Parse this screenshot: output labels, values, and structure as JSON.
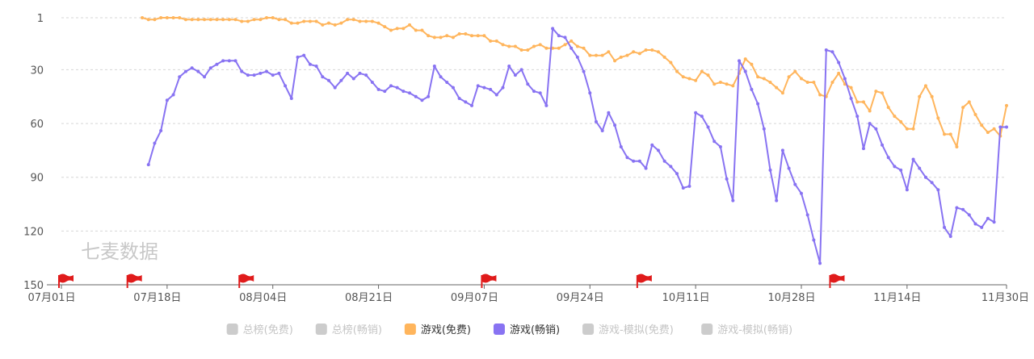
{
  "chart_data": {
    "type": "line",
    "title": "",
    "watermark": "七麦数据",
    "xlabel": "",
    "ylabel": "",
    "y_inverted": true,
    "ylim": [
      1,
      150
    ],
    "y_ticks": [
      1,
      30,
      60,
      90,
      120,
      150
    ],
    "x_tick_labels": [
      "07月01日",
      "07月18日",
      "08月04日",
      "08月21日",
      "09月07日",
      "09月24日",
      "10月11日",
      "10月28日",
      "11月14日",
      "11月30日"
    ],
    "x_tick_days": [
      0,
      17,
      34,
      51,
      68,
      85,
      102,
      119,
      136,
      152
    ],
    "flag_days": [
      0,
      11,
      29,
      68,
      93,
      124
    ],
    "grid": true,
    "legend_position": "bottom-center",
    "legend": [
      {
        "name": "总榜(免费)",
        "active": false,
        "color": "#cccccc"
      },
      {
        "name": "总榜(畅销)",
        "active": false,
        "color": "#cccccc"
      },
      {
        "name": "游戏(免费)",
        "active": true,
        "color": "#ffb55c"
      },
      {
        "name": "游戏(畅销)",
        "active": true,
        "color": "#8873f2"
      },
      {
        "name": "游戏-模拟(免费)",
        "active": false,
        "color": "#cccccc"
      },
      {
        "name": "游戏-模拟(畅销)",
        "active": false,
        "color": "#cccccc"
      }
    ],
    "series": [
      {
        "name": "游戏(免费)",
        "color": "#ffb55c",
        "points": [
          [
            13,
            1
          ],
          [
            14,
            2
          ],
          [
            15,
            2
          ],
          [
            16,
            1
          ],
          [
            17,
            1
          ],
          [
            18,
            1
          ],
          [
            19,
            1
          ],
          [
            20,
            2
          ],
          [
            21,
            2
          ],
          [
            22,
            2
          ],
          [
            23,
            2
          ],
          [
            24,
            2
          ],
          [
            25,
            2
          ],
          [
            26,
            2
          ],
          [
            27,
            2
          ],
          [
            28,
            2
          ],
          [
            29,
            3
          ],
          [
            30,
            3
          ],
          [
            31,
            2
          ],
          [
            32,
            2
          ],
          [
            33,
            1
          ],
          [
            34,
            1
          ],
          [
            35,
            2
          ],
          [
            36,
            2
          ],
          [
            37,
            4
          ],
          [
            38,
            4
          ],
          [
            39,
            3
          ],
          [
            40,
            3
          ],
          [
            41,
            3
          ],
          [
            42,
            5
          ],
          [
            43,
            4
          ],
          [
            44,
            5
          ],
          [
            45,
            4
          ],
          [
            46,
            2
          ],
          [
            47,
            2
          ],
          [
            48,
            3
          ],
          [
            49,
            3
          ],
          [
            50,
            3
          ],
          [
            51,
            4
          ],
          [
            52,
            6
          ],
          [
            53,
            8
          ],
          [
            54,
            7
          ],
          [
            55,
            7
          ],
          [
            56,
            5
          ],
          [
            57,
            8
          ],
          [
            58,
            8
          ],
          [
            59,
            11
          ],
          [
            60,
            12
          ],
          [
            61,
            12
          ],
          [
            62,
            11
          ],
          [
            63,
            12
          ],
          [
            64,
            10
          ],
          [
            65,
            10
          ],
          [
            66,
            11
          ],
          [
            67,
            11
          ],
          [
            68,
            11
          ],
          [
            69,
            14
          ],
          [
            70,
            14
          ],
          [
            71,
            16
          ],
          [
            72,
            17
          ],
          [
            73,
            17
          ],
          [
            74,
            19
          ],
          [
            75,
            19
          ],
          [
            76,
            17
          ],
          [
            77,
            16
          ],
          [
            78,
            18
          ],
          [
            79,
            18
          ],
          [
            80,
            18
          ],
          [
            81,
            16
          ],
          [
            82,
            14
          ],
          [
            83,
            17
          ],
          [
            84,
            18
          ],
          [
            85,
            22
          ],
          [
            86,
            22
          ],
          [
            87,
            22
          ],
          [
            88,
            20
          ],
          [
            89,
            25
          ],
          [
            90,
            23
          ],
          [
            91,
            22
          ],
          [
            92,
            20
          ],
          [
            93,
            21
          ],
          [
            94,
            19
          ],
          [
            95,
            19
          ],
          [
            96,
            20
          ],
          [
            97,
            23
          ],
          [
            98,
            26
          ],
          [
            99,
            31
          ],
          [
            100,
            34
          ],
          [
            101,
            35
          ],
          [
            102,
            36
          ],
          [
            103,
            31
          ],
          [
            104,
            33
          ],
          [
            105,
            38
          ],
          [
            106,
            37
          ],
          [
            107,
            38
          ],
          [
            108,
            39
          ],
          [
            109,
            32
          ],
          [
            110,
            24
          ],
          [
            111,
            27
          ],
          [
            112,
            34
          ],
          [
            113,
            35
          ],
          [
            114,
            37
          ],
          [
            115,
            40
          ],
          [
            116,
            43
          ],
          [
            117,
            34
          ],
          [
            118,
            31
          ],
          [
            119,
            35
          ],
          [
            120,
            37
          ],
          [
            121,
            37
          ],
          [
            122,
            44
          ],
          [
            123,
            45
          ],
          [
            124,
            37
          ],
          [
            125,
            32
          ],
          [
            126,
            38
          ],
          [
            127,
            40
          ],
          [
            128,
            48
          ],
          [
            129,
            48
          ],
          [
            130,
            53
          ],
          [
            131,
            42
          ],
          [
            132,
            43
          ],
          [
            133,
            51
          ],
          [
            134,
            56
          ],
          [
            135,
            59
          ],
          [
            136,
            63
          ],
          [
            137,
            63
          ],
          [
            138,
            45
          ],
          [
            139,
            39
          ],
          [
            140,
            45
          ],
          [
            141,
            57
          ],
          [
            142,
            66
          ],
          [
            143,
            66
          ],
          [
            144,
            73
          ],
          [
            145,
            51
          ],
          [
            146,
            48
          ],
          [
            147,
            55
          ],
          [
            148,
            61
          ],
          [
            149,
            65
          ],
          [
            150,
            63
          ],
          [
            151,
            67
          ],
          [
            152,
            50
          ]
        ]
      },
      {
        "name": "游戏(畅销)",
        "color": "#8873f2",
        "points": [
          [
            14,
            83
          ],
          [
            15,
            71
          ],
          [
            16,
            64
          ],
          [
            17,
            47
          ],
          [
            18,
            44
          ],
          [
            19,
            34
          ],
          [
            20,
            31
          ],
          [
            21,
            29
          ],
          [
            22,
            31
          ],
          [
            23,
            34
          ],
          [
            24,
            29
          ],
          [
            25,
            27
          ],
          [
            26,
            25
          ],
          [
            27,
            25
          ],
          [
            28,
            25
          ],
          [
            29,
            31
          ],
          [
            30,
            33
          ],
          [
            31,
            33
          ],
          [
            32,
            32
          ],
          [
            33,
            31
          ],
          [
            34,
            33
          ],
          [
            35,
            32
          ],
          [
            36,
            39
          ],
          [
            37,
            46
          ],
          [
            38,
            23
          ],
          [
            39,
            22
          ],
          [
            40,
            27
          ],
          [
            41,
            28
          ],
          [
            42,
            34
          ],
          [
            43,
            36
          ],
          [
            44,
            40
          ],
          [
            45,
            36
          ],
          [
            46,
            32
          ],
          [
            47,
            35
          ],
          [
            48,
            32
          ],
          [
            49,
            33
          ],
          [
            50,
            37
          ],
          [
            51,
            41
          ],
          [
            52,
            42
          ],
          [
            53,
            39
          ],
          [
            54,
            40
          ],
          [
            55,
            42
          ],
          [
            56,
            43
          ],
          [
            57,
            45
          ],
          [
            58,
            47
          ],
          [
            59,
            45
          ],
          [
            60,
            28
          ],
          [
            61,
            34
          ],
          [
            62,
            37
          ],
          [
            63,
            40
          ],
          [
            64,
            46
          ],
          [
            65,
            48
          ],
          [
            66,
            50
          ],
          [
            67,
            39
          ],
          [
            68,
            40
          ],
          [
            69,
            41
          ],
          [
            70,
            44
          ],
          [
            71,
            40
          ],
          [
            72,
            28
          ],
          [
            73,
            33
          ],
          [
            74,
            30
          ],
          [
            75,
            38
          ],
          [
            76,
            42
          ],
          [
            77,
            43
          ],
          [
            78,
            50
          ],
          [
            79,
            7
          ],
          [
            80,
            11
          ],
          [
            81,
            12
          ],
          [
            82,
            18
          ],
          [
            83,
            23
          ],
          [
            84,
            31
          ],
          [
            85,
            43
          ],
          [
            86,
            59
          ],
          [
            87,
            64
          ],
          [
            88,
            54
          ],
          [
            89,
            61
          ],
          [
            90,
            73
          ],
          [
            91,
            79
          ],
          [
            92,
            81
          ],
          [
            93,
            81
          ],
          [
            94,
            85
          ],
          [
            95,
            72
          ],
          [
            96,
            75
          ],
          [
            97,
            81
          ],
          [
            98,
            84
          ],
          [
            99,
            88
          ],
          [
            100,
            96
          ],
          [
            101,
            95
          ],
          [
            102,
            54
          ],
          [
            103,
            56
          ],
          [
            104,
            62
          ],
          [
            105,
            70
          ],
          [
            106,
            73
          ],
          [
            107,
            91
          ],
          [
            108,
            103
          ],
          [
            109,
            25
          ],
          [
            110,
            31
          ],
          [
            111,
            41
          ],
          [
            112,
            49
          ],
          [
            113,
            63
          ],
          [
            114,
            86
          ],
          [
            115,
            103
          ],
          [
            116,
            75
          ],
          [
            117,
            85
          ],
          [
            118,
            94
          ],
          [
            119,
            99
          ],
          [
            120,
            111
          ],
          [
            121,
            125
          ],
          [
            122,
            138
          ],
          [
            123,
            19
          ],
          [
            124,
            20
          ],
          [
            125,
            26
          ],
          [
            126,
            35
          ],
          [
            127,
            46
          ],
          [
            128,
            56
          ],
          [
            129,
            74
          ],
          [
            130,
            60
          ],
          [
            131,
            63
          ],
          [
            132,
            72
          ],
          [
            133,
            79
          ],
          [
            134,
            84
          ],
          [
            135,
            86
          ],
          [
            136,
            97
          ],
          [
            137,
            80
          ],
          [
            138,
            85
          ],
          [
            139,
            90
          ],
          [
            140,
            93
          ],
          [
            141,
            97
          ],
          [
            142,
            118
          ],
          [
            143,
            123
          ],
          [
            144,
            107
          ],
          [
            145,
            108
          ],
          [
            146,
            111
          ],
          [
            147,
            116
          ],
          [
            148,
            118
          ],
          [
            149,
            113
          ],
          [
            150,
            115
          ],
          [
            151,
            62
          ],
          [
            152,
            62
          ]
        ]
      }
    ]
  }
}
